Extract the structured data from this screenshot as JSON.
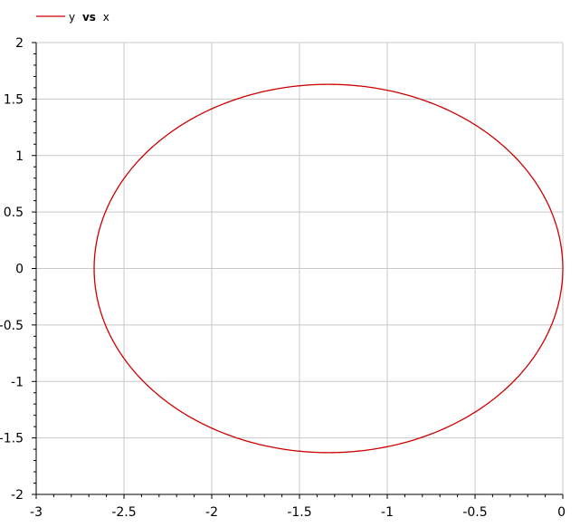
{
  "chart_data": {
    "type": "line",
    "legend": {
      "placement": "top-left",
      "entries": [
        {
          "y_name": "y",
          "joiner": "vs",
          "x_name": "x"
        }
      ]
    },
    "xlim": [
      -3,
      0
    ],
    "ylim": [
      -2,
      2
    ],
    "x_ticks": [
      -3,
      -2.5,
      -2,
      -1.5,
      -1,
      -0.5,
      0
    ],
    "x_tick_labels": [
      "-3",
      "-2.5",
      "-2",
      "-1.5",
      "-1",
      "-0.5",
      "0"
    ],
    "y_ticks": [
      2,
      1.5,
      1,
      0.5,
      0,
      -0.5,
      -1,
      -1.5,
      -2
    ],
    "y_tick_labels": [
      "2",
      "1.5",
      "1",
      "0.5",
      "0",
      "-0.5",
      "-1",
      "-1.5",
      "-2"
    ],
    "grid": true,
    "series": [
      {
        "name": "y vs x",
        "color": "#cc0000",
        "shape": "ellipse",
        "center": [
          -1.335,
          0.0
        ],
        "radius_x": 1.335,
        "radius_y": 1.63,
        "x": [
          0.0,
          -0.18,
          -0.67,
          -1.335,
          -2.0,
          -2.49,
          -2.67,
          -2.49,
          -2.0,
          -1.335,
          -0.67,
          -0.18,
          0.0
        ],
        "y": [
          0.0,
          0.815,
          1.41,
          1.63,
          1.41,
          0.815,
          0.0,
          -0.815,
          -1.41,
          -1.63,
          -1.41,
          -0.815,
          0.0
        ]
      }
    ]
  }
}
